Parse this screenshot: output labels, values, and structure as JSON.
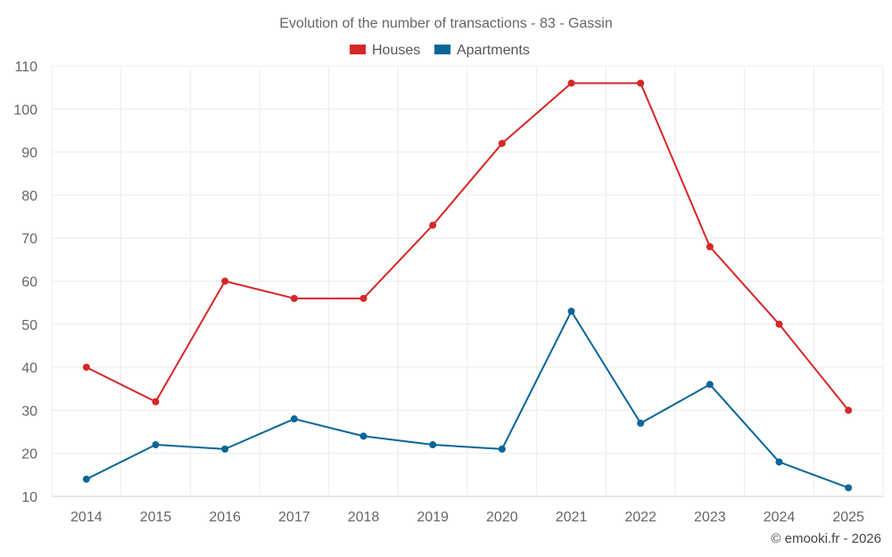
{
  "chart_data": {
    "type": "line",
    "title": "Evolution of the number of transactions - 83 - Gassin",
    "categories": [
      "2014",
      "2015",
      "2016",
      "2017",
      "2018",
      "2019",
      "2020",
      "2021",
      "2022",
      "2023",
      "2024",
      "2025"
    ],
    "series": [
      {
        "name": "Houses",
        "color": "#d62728",
        "values": [
          40,
          32,
          60,
          56,
          56,
          73,
          92,
          106,
          106,
          68,
          50,
          30
        ]
      },
      {
        "name": "Apartments",
        "color": "#0a6698",
        "values": [
          14,
          22,
          21,
          28,
          24,
          22,
          21,
          53,
          27,
          36,
          18,
          12
        ]
      }
    ],
    "ylim": [
      10,
      110
    ],
    "yticks": [
      "10",
      "20",
      "30",
      "40",
      "50",
      "60",
      "70",
      "80",
      "90",
      "100",
      "110"
    ],
    "xlabel": "",
    "ylabel": "",
    "legend": "top-center",
    "grid": true
  },
  "credit": "© emooki.fr - 2026"
}
